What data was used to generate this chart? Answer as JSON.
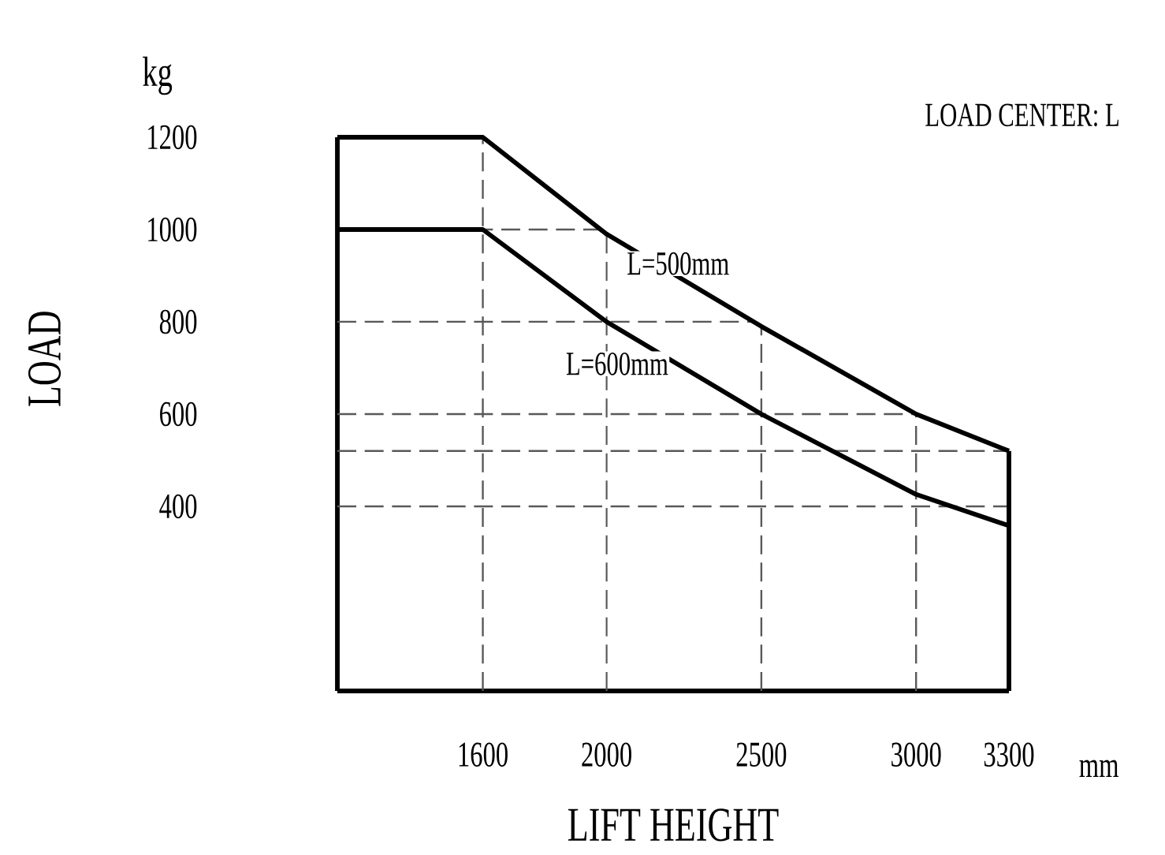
{
  "chart_data": {
    "type": "line",
    "xlabel": "LIFT HEIGHT",
    "ylabel": "LOAD",
    "annotations": [
      "kg",
      "LOAD CENTER: L",
      "mm"
    ],
    "xlim": [
      1130,
      3300
    ],
    "ylim": [
      0,
      1200
    ],
    "xticks": [
      1600,
      2000,
      2500,
      3000,
      3300
    ],
    "yticks": [
      400,
      600,
      800,
      1000,
      1200
    ],
    "grid": true,
    "legend": false,
    "line_style": "solid",
    "marker": "none",
    "ref_lines": [
      {
        "axis": "y",
        "value": 520,
        "line_style": "dashed"
      }
    ],
    "series": [
      {
        "name": "L=500mm",
        "color": "#000000",
        "x": [
          1130,
          1600,
          2000,
          2500,
          3000,
          3300
        ],
        "values": [
          1200,
          1200,
          990,
          790,
          600,
          520
        ]
      },
      {
        "name": "L=600mm",
        "color": "#000000",
        "x": [
          1130,
          1600,
          2000,
          2500,
          3000,
          3300
        ],
        "values": [
          1000,
          1000,
          800,
          600,
          426,
          358
        ]
      }
    ]
  }
}
